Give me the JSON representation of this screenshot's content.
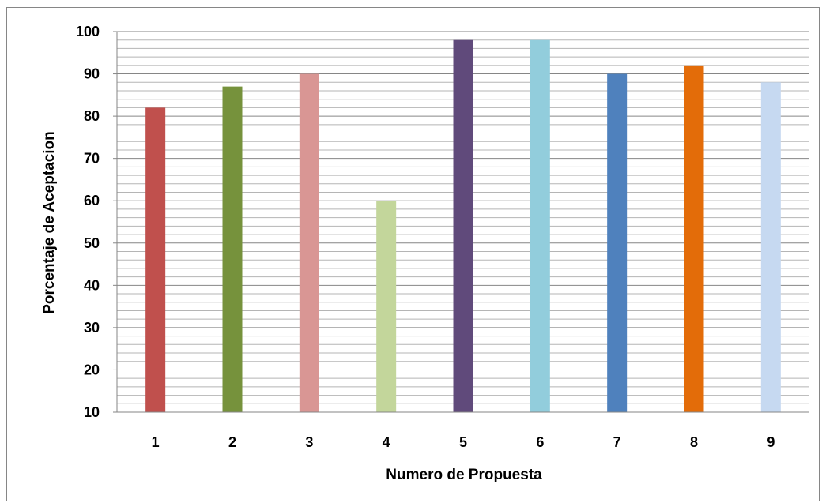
{
  "chart_data": {
    "type": "bar",
    "categories": [
      "1",
      "2",
      "3",
      "4",
      "5",
      "6",
      "7",
      "8",
      "9"
    ],
    "values": [
      82,
      87,
      90,
      60,
      98,
      98,
      90,
      92,
      88
    ],
    "colors": [
      "#c0504d",
      "#76923c",
      "#d99694",
      "#c3d69b",
      "#604a7b",
      "#92cddc",
      "#4f81bd",
      "#e36c09",
      "#c6d9f1"
    ],
    "xlabel": "Numero de Propuesta",
    "ylabel": "Porcentaje de Aceptacion",
    "ylim": [
      10,
      100
    ],
    "yticks": [
      "10",
      "20",
      "30",
      "40",
      "50",
      "60",
      "70",
      "80",
      "90",
      "100"
    ],
    "minor_step": 2,
    "grid": true,
    "legend": "none"
  }
}
